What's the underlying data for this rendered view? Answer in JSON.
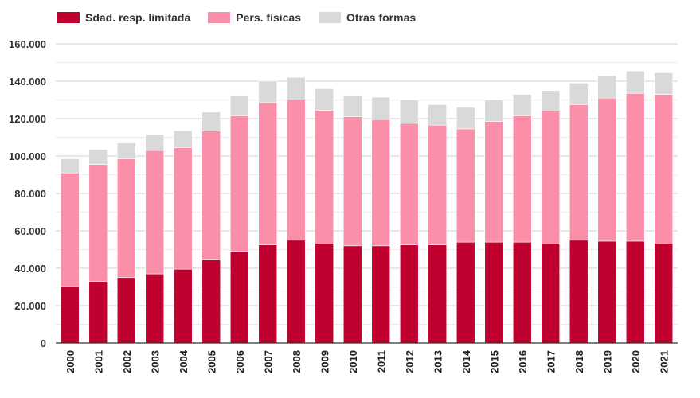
{
  "chart_data": {
    "type": "bar",
    "stacked": true,
    "title": "",
    "xlabel": "",
    "ylabel": "",
    "categories": [
      "2000",
      "2001",
      "2002",
      "2003",
      "2004",
      "2005",
      "2006",
      "2007",
      "2008",
      "2009",
      "2010",
      "2011",
      "2012",
      "2013",
      "2014",
      "2015",
      "2016",
      "2017",
      "2018",
      "2019",
      "2020",
      "2021"
    ],
    "series": [
      {
        "name": "Sdad. resp. limitada",
        "color": "#c0002e",
        "values": [
          30500,
          33000,
          35000,
          37000,
          39500,
          44500,
          49000,
          52500,
          55000,
          53500,
          52000,
          52000,
          52500,
          52500,
          54000,
          54000,
          54000,
          53500,
          55000,
          54500,
          54500,
          53500
        ]
      },
      {
        "name": "Pers. físicas",
        "color": "#fb8ea8",
        "values": [
          60500,
          62500,
          63500,
          66000,
          65000,
          69000,
          72500,
          76000,
          75000,
          71000,
          69000,
          67500,
          65000,
          64000,
          60500,
          64500,
          67500,
          70500,
          72500,
          76500,
          79000,
          79500
        ]
      },
      {
        "name": "Otras formas",
        "color": "#d9d9d9",
        "values": [
          7500,
          8000,
          8500,
          8500,
          9000,
          10000,
          11000,
          11500,
          12000,
          11500,
          11500,
          12000,
          12500,
          11000,
          11500,
          11500,
          11500,
          11000,
          11500,
          12000,
          12000,
          11500
        ]
      }
    ],
    "ylim": [
      0,
      160000
    ],
    "y_ticks": [
      {
        "value": 0,
        "label": "0"
      },
      {
        "value": 20000,
        "label": "20.000"
      },
      {
        "value": 40000,
        "label": "40.000"
      },
      {
        "value": 60000,
        "label": "60.000"
      },
      {
        "value": 80000,
        "label": "80.000"
      },
      {
        "value": 100000,
        "label": "100.000"
      },
      {
        "value": 120000,
        "label": "120.000"
      },
      {
        "value": 140000,
        "label": "140.000"
      },
      {
        "value": 160000,
        "label": "160.000"
      }
    ],
    "grid": true,
    "legend_position": "top-left"
  }
}
